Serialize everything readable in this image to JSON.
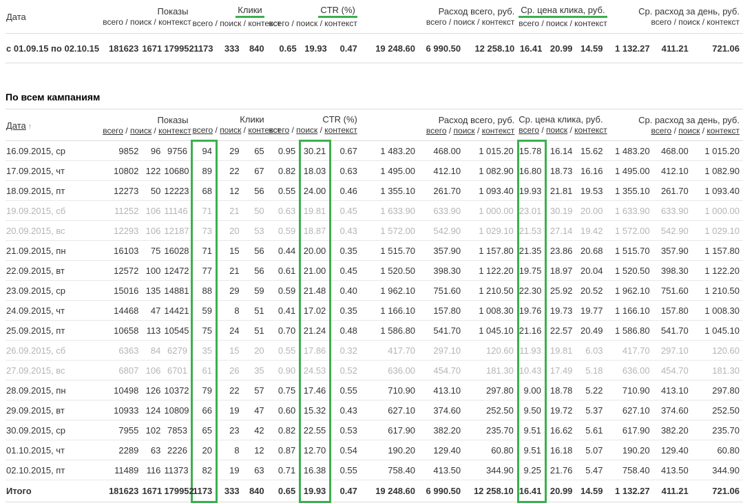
{
  "ui": {
    "green": "#3ab04c",
    "sort_arrow": "↑",
    "slash": " / "
  },
  "column_keys": [
    "impressions-total",
    "impressions-search",
    "impressions-context",
    "clicks-total",
    "clicks-search",
    "clicks-context",
    "ctr-total",
    "ctr-search",
    "ctr-context",
    "cost-total",
    "cost-search",
    "cost-context",
    "avg-cpc-total",
    "avg-cpc-search",
    "avg-cpc-context",
    "avg-daily-cost-total",
    "avg-daily-cost-search",
    "avg-daily-cost-context"
  ],
  "subtitle_parts": [
    "всего",
    "поиск",
    "контекст"
  ],
  "summary_table": {
    "date_header": "Дата",
    "groups": [
      {
        "label": "Показы",
        "underlined": false
      },
      {
        "label": "Клики",
        "underlined": true
      },
      {
        "label": "CTR (%)",
        "underlined": true
      },
      {
        "label": "Расход всего, руб.",
        "underlined": false
      },
      {
        "label": "Ср. цена клика, руб.",
        "underlined": true
      },
      {
        "label": "Ср. расход за день, руб.",
        "underlined": false
      }
    ],
    "row": {
      "period": "с 01.09.15 по 02.10.15",
      "values": [
        "181623",
        "1671",
        "179952",
        "1173",
        "333",
        "840",
        "0.65",
        "19.93",
        "0.47",
        "19 248.60",
        "6 990.50",
        "12 258.10",
        "16.41",
        "20.99",
        "14.59",
        "1 132.27",
        "411.21",
        "721.06"
      ]
    }
  },
  "campaigns_table": {
    "section_title": "По всем кампаниям",
    "date_header": "Дата",
    "groups": [
      {
        "label": "Показы"
      },
      {
        "label": "Клики"
      },
      {
        "label": "CTR (%)"
      },
      {
        "label": "Расход всего, руб."
      },
      {
        "label": "Ср. цена клика, руб."
      },
      {
        "label": "Ср. расход за день, руб."
      }
    ],
    "highlight_value_indexes": [
      3,
      7,
      12
    ],
    "rows": [
      {
        "date": "16.09.2015, ср",
        "muted": false,
        "values": [
          "9852",
          "96",
          "9756",
          "94",
          "29",
          "65",
          "0.95",
          "30.21",
          "0.67",
          "1 483.20",
          "468.00",
          "1 015.20",
          "15.78",
          "16.14",
          "15.62",
          "1 483.20",
          "468.00",
          "1 015.20"
        ]
      },
      {
        "date": "17.09.2015, чт",
        "muted": false,
        "values": [
          "10802",
          "122",
          "10680",
          "89",
          "22",
          "67",
          "0.82",
          "18.03",
          "0.63",
          "1 495.00",
          "412.10",
          "1 082.90",
          "16.80",
          "18.73",
          "16.16",
          "1 495.00",
          "412.10",
          "1 082.90"
        ]
      },
      {
        "date": "18.09.2015, пт",
        "muted": false,
        "values": [
          "12273",
          "50",
          "12223",
          "68",
          "12",
          "56",
          "0.55",
          "24.00",
          "0.46",
          "1 355.10",
          "261.70",
          "1 093.40",
          "19.93",
          "21.81",
          "19.53",
          "1 355.10",
          "261.70",
          "1 093.40"
        ]
      },
      {
        "date": "19.09.2015, сб",
        "muted": true,
        "values": [
          "11252",
          "106",
          "11146",
          "71",
          "21",
          "50",
          "0.63",
          "19.81",
          "0.45",
          "1 633.90",
          "633.90",
          "1 000.00",
          "23.01",
          "30.19",
          "20.00",
          "1 633.90",
          "633.90",
          "1 000.00"
        ]
      },
      {
        "date": "20.09.2015, вс",
        "muted": true,
        "values": [
          "12293",
          "106",
          "12187",
          "73",
          "20",
          "53",
          "0.59",
          "18.87",
          "0.43",
          "1 572.00",
          "542.90",
          "1 029.10",
          "21.53",
          "27.14",
          "19.42",
          "1 572.00",
          "542.90",
          "1 029.10"
        ]
      },
      {
        "date": "21.09.2015, пн",
        "muted": false,
        "values": [
          "16103",
          "75",
          "16028",
          "71",
          "15",
          "56",
          "0.44",
          "20.00",
          "0.35",
          "1 515.70",
          "357.90",
          "1 157.80",
          "21.35",
          "23.86",
          "20.68",
          "1 515.70",
          "357.90",
          "1 157.80"
        ]
      },
      {
        "date": "22.09.2015, вт",
        "muted": false,
        "values": [
          "12572",
          "100",
          "12472",
          "77",
          "21",
          "56",
          "0.61",
          "21.00",
          "0.45",
          "1 520.50",
          "398.30",
          "1 122.20",
          "19.75",
          "18.97",
          "20.04",
          "1 520.50",
          "398.30",
          "1 122.20"
        ]
      },
      {
        "date": "23.09.2015, ср",
        "muted": false,
        "values": [
          "15016",
          "135",
          "14881",
          "88",
          "29",
          "59",
          "0.59",
          "21.48",
          "0.40",
          "1 962.10",
          "751.60",
          "1 210.50",
          "22.30",
          "25.92",
          "20.52",
          "1 962.10",
          "751.60",
          "1 210.50"
        ]
      },
      {
        "date": "24.09.2015, чт",
        "muted": false,
        "values": [
          "14468",
          "47",
          "14421",
          "59",
          "8",
          "51",
          "0.41",
          "17.02",
          "0.35",
          "1 166.10",
          "157.80",
          "1 008.30",
          "19.76",
          "19.73",
          "19.77",
          "1 166.10",
          "157.80",
          "1 008.30"
        ]
      },
      {
        "date": "25.09.2015, пт",
        "muted": false,
        "values": [
          "10658",
          "113",
          "10545",
          "75",
          "24",
          "51",
          "0.70",
          "21.24",
          "0.48",
          "1 586.80",
          "541.70",
          "1 045.10",
          "21.16",
          "22.57",
          "20.49",
          "1 586.80",
          "541.70",
          "1 045.10"
        ]
      },
      {
        "date": "26.09.2015, сб",
        "muted": true,
        "values": [
          "6363",
          "84",
          "6279",
          "35",
          "15",
          "20",
          "0.55",
          "17.86",
          "0.32",
          "417.70",
          "297.10",
          "120.60",
          "11.93",
          "19.81",
          "6.03",
          "417.70",
          "297.10",
          "120.60"
        ]
      },
      {
        "date": "27.09.2015, вс",
        "muted": true,
        "values": [
          "6807",
          "106",
          "6701",
          "61",
          "26",
          "35",
          "0.90",
          "24.53",
          "0.52",
          "636.00",
          "454.70",
          "181.30",
          "10.43",
          "17.49",
          "5.18",
          "636.00",
          "454.70",
          "181.30"
        ]
      },
      {
        "date": "28.09.2015, пн",
        "muted": false,
        "values": [
          "10498",
          "126",
          "10372",
          "79",
          "22",
          "57",
          "0.75",
          "17.46",
          "0.55",
          "710.90",
          "413.10",
          "297.80",
          "9.00",
          "18.78",
          "5.22",
          "710.90",
          "413.10",
          "297.80"
        ]
      },
      {
        "date": "29.09.2015, вт",
        "muted": false,
        "values": [
          "10933",
          "124",
          "10809",
          "66",
          "19",
          "47",
          "0.60",
          "15.32",
          "0.43",
          "627.10",
          "374.60",
          "252.50",
          "9.50",
          "19.72",
          "5.37",
          "627.10",
          "374.60",
          "252.50"
        ]
      },
      {
        "date": "30.09.2015, ср",
        "muted": false,
        "values": [
          "7955",
          "102",
          "7853",
          "65",
          "23",
          "42",
          "0.82",
          "22.55",
          "0.53",
          "617.90",
          "382.20",
          "235.70",
          "9.51",
          "16.62",
          "5.61",
          "617.90",
          "382.20",
          "235.70"
        ]
      },
      {
        "date": "01.10.2015, чт",
        "muted": false,
        "values": [
          "2289",
          "63",
          "2226",
          "20",
          "8",
          "12",
          "0.87",
          "12.70",
          "0.54",
          "190.20",
          "129.40",
          "60.80",
          "9.51",
          "16.18",
          "5.07",
          "190.20",
          "129.40",
          "60.80"
        ]
      },
      {
        "date": "02.10.2015, пт",
        "muted": false,
        "values": [
          "11489",
          "116",
          "11373",
          "82",
          "19",
          "63",
          "0.71",
          "16.38",
          "0.55",
          "758.40",
          "413.50",
          "344.90",
          "9.25",
          "21.76",
          "5.47",
          "758.40",
          "413.50",
          "344.90"
        ]
      }
    ],
    "totals": {
      "label": "Итого",
      "values": [
        "181623",
        "1671",
        "179952",
        "1173",
        "333",
        "840",
        "0.65",
        "19.93",
        "0.47",
        "19 248.60",
        "6 990.50",
        "12 258.10",
        "16.41",
        "20.99",
        "14.59",
        "1 132.27",
        "411.21",
        "721.06"
      ]
    }
  }
}
